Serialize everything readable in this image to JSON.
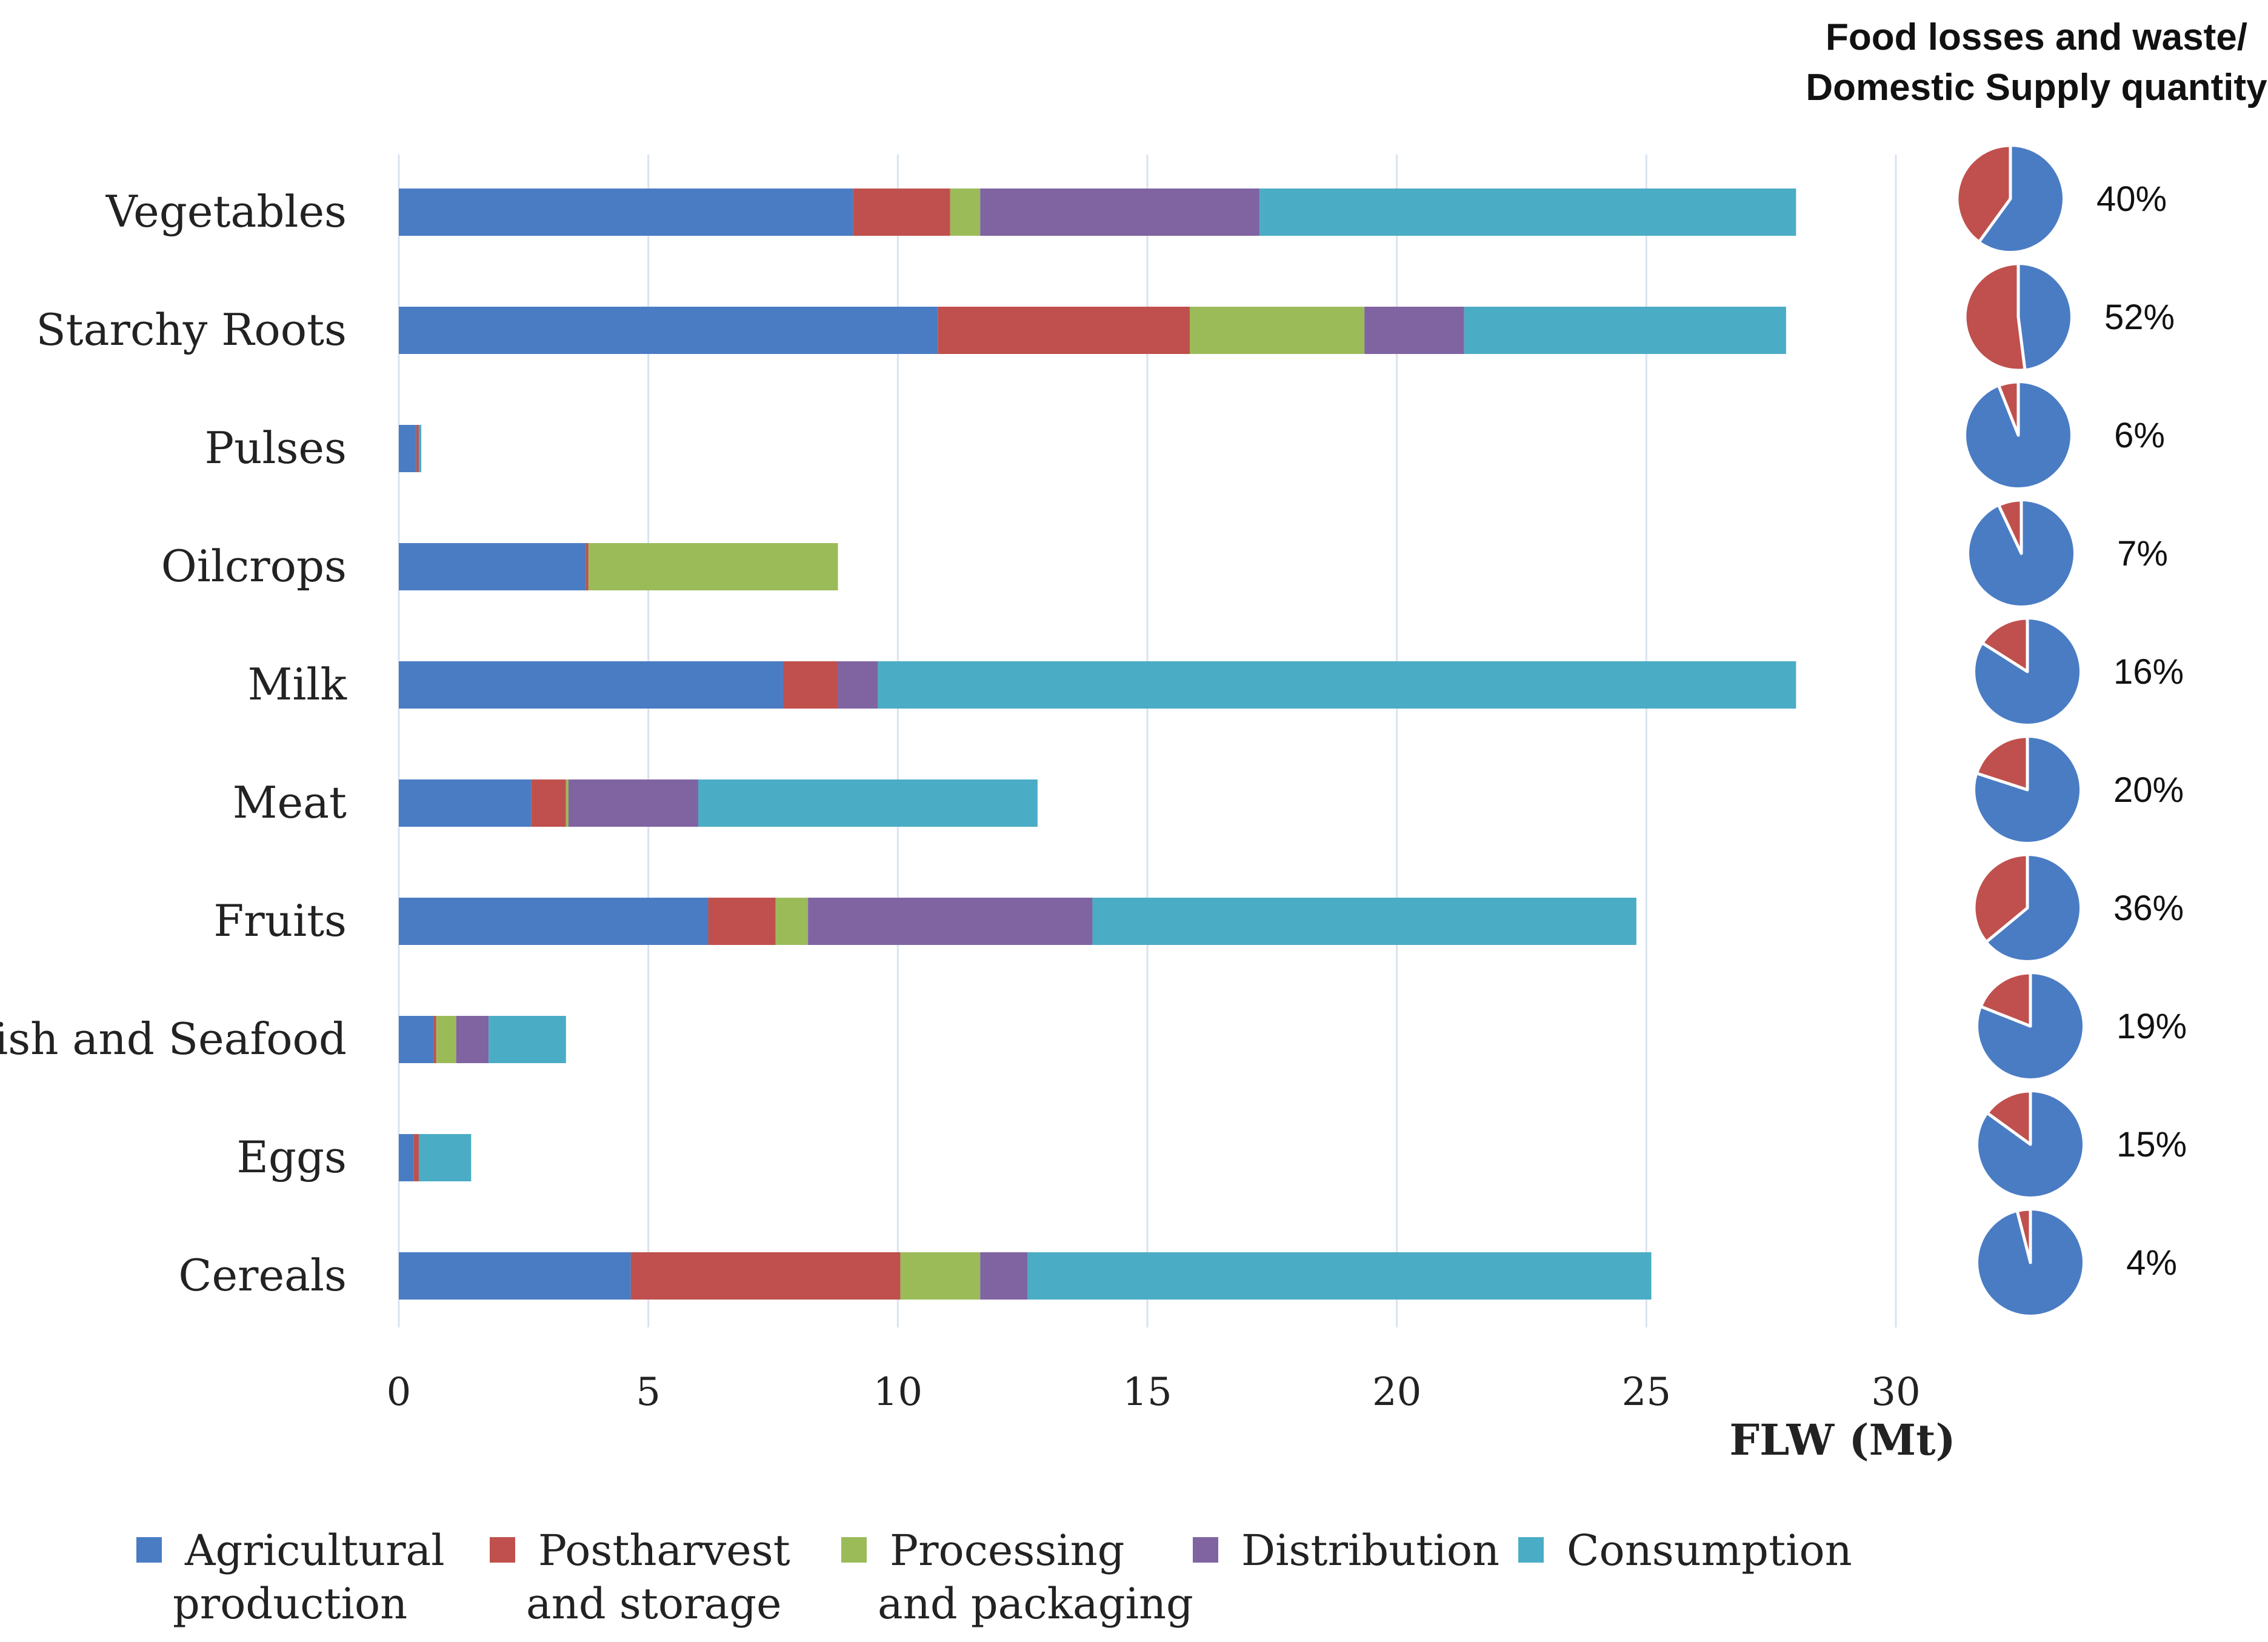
{
  "chart_data": [
    {
      "type": "bar",
      "orientation": "horizontal",
      "stacked": true,
      "title": "",
      "xlabel": "FLW (Mt)",
      "ylabel": "",
      "xlim": [
        0,
        30
      ],
      "xticks": [
        "0",
        "5",
        "10",
        "15",
        "20",
        "25",
        "30"
      ],
      "grid": true,
      "legend_position": "bottom",
      "categories": [
        "Vegetables",
        "Starchy Roots",
        "Pulses",
        "Oilcrops",
        "Milk",
        "Meat",
        "Fruits",
        "Fish and Seafood",
        "Eggs",
        "Cereals"
      ],
      "series": [
        {
          "name": "Agricultural production",
          "legend_lines": [
            "Agricultural",
            "production"
          ],
          "color": "#4a7cc4",
          "values": [
            9.1,
            10.8,
            0.35,
            3.75,
            7.7,
            2.65,
            6.2,
            0.7,
            0.3,
            4.65
          ]
        },
        {
          "name": "Postharvest and storage",
          "legend_lines": [
            "Postharvest",
            "and storage"
          ],
          "color": "#c0504d",
          "values": [
            1.95,
            5.05,
            0.05,
            0.05,
            1.1,
            0.7,
            1.35,
            0.05,
            0.1,
            5.4
          ]
        },
        {
          "name": "Processing and packaging",
          "legend_lines": [
            "Processing",
            "and packaging"
          ],
          "color": "#9bbb59",
          "values": [
            0.6,
            3.5,
            0.0,
            5.0,
            0.0,
            0.05,
            0.65,
            0.4,
            0.0,
            1.6
          ]
        },
        {
          "name": "Distribution",
          "legend_lines": [
            "Distribution"
          ],
          "color": "#8064a2",
          "values": [
            5.6,
            2.0,
            0.0,
            0.0,
            0.8,
            2.6,
            5.7,
            0.65,
            0.0,
            0.95
          ]
        },
        {
          "name": "Consumption",
          "legend_lines": [
            "Consumption"
          ],
          "color": "#4bacc6",
          "values": [
            10.75,
            6.45,
            0.05,
            0.0,
            18.4,
            6.8,
            10.9,
            1.55,
            1.05,
            12.5
          ]
        }
      ]
    },
    {
      "type": "pie",
      "title_lines": [
        "Food losses and waste/",
        "Domestic Supply quantity"
      ],
      "categories": [
        "Vegetables",
        "Starchy Roots",
        "Pulses",
        "Oilcrops",
        "Milk",
        "Meat",
        "Fruits",
        "Fish and Seafood",
        "Eggs",
        "Cereals"
      ],
      "values_percent": [
        40,
        52,
        6,
        7,
        16,
        20,
        36,
        19,
        15,
        4
      ],
      "labels": [
        "40%",
        "52%",
        "6%",
        "7%",
        "16%",
        "20%",
        "36%",
        "19%",
        "15%",
        "4%"
      ],
      "loss_color": "#c0504d",
      "rest_color": "#4a7cc4"
    }
  ]
}
